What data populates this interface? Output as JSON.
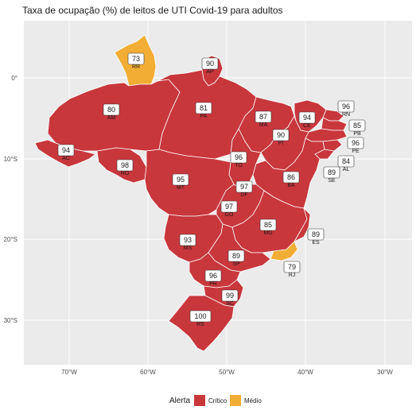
{
  "title": "Taxa de ocupação (%) de leitos de UTI Covid-19 para adultos",
  "axes": {
    "x_ticks": [
      "70°W",
      "60°W",
      "50°W",
      "40°W",
      "30°W"
    ],
    "y_ticks": [
      "0°",
      "10°S",
      "20°S",
      "30°S"
    ]
  },
  "legend": {
    "title": "Alerta",
    "items": [
      {
        "label": "Crítico",
        "color": "#c8373c"
      },
      {
        "label": "Médio",
        "color": "#f2ae34"
      }
    ]
  },
  "states": [
    {
      "abbr": "RR",
      "value": "73",
      "level": "Médio"
    },
    {
      "abbr": "AP",
      "value": "90",
      "level": "Crítico"
    },
    {
      "abbr": "AM",
      "value": "80",
      "level": "Crítico"
    },
    {
      "abbr": "PA",
      "value": "81",
      "level": "Crítico"
    },
    {
      "abbr": "MA",
      "value": "87",
      "level": "Crítico"
    },
    {
      "abbr": "CE",
      "value": "94",
      "level": "Crítico"
    },
    {
      "abbr": "RN",
      "value": "96",
      "level": "Crítico"
    },
    {
      "abbr": "PB",
      "value": "85",
      "level": "Crítico"
    },
    {
      "abbr": "PE",
      "value": "96",
      "level": "Crítico"
    },
    {
      "abbr": "PI",
      "value": "90",
      "level": "Crítico"
    },
    {
      "abbr": "AL",
      "value": "84",
      "level": "Crítico"
    },
    {
      "abbr": "SE",
      "value": "89",
      "level": "Crítico"
    },
    {
      "abbr": "AC",
      "value": "94",
      "level": "Crítico"
    },
    {
      "abbr": "RO",
      "value": "98",
      "level": "Crítico"
    },
    {
      "abbr": "TO",
      "value": "96",
      "level": "Crítico"
    },
    {
      "abbr": "BA",
      "value": "86",
      "level": "Crítico"
    },
    {
      "abbr": "MT",
      "value": "95",
      "level": "Crítico"
    },
    {
      "abbr": "DF",
      "value": "97",
      "level": "Crítico"
    },
    {
      "abbr": "GO",
      "value": "97",
      "level": "Crítico"
    },
    {
      "abbr": "MG",
      "value": "85",
      "level": "Crítico"
    },
    {
      "abbr": "MS",
      "value": "93",
      "level": "Crítico"
    },
    {
      "abbr": "ES",
      "value": "89",
      "level": "Crítico"
    },
    {
      "abbr": "SP",
      "value": "89",
      "level": "Crítico"
    },
    {
      "abbr": "RJ",
      "value": "79",
      "level": "Médio"
    },
    {
      "abbr": "PR",
      "value": "96",
      "level": "Crítico"
    },
    {
      "abbr": "SC",
      "value": "99",
      "level": "Crítico"
    },
    {
      "abbr": "RS",
      "value": "100",
      "level": "Crítico"
    }
  ]
}
